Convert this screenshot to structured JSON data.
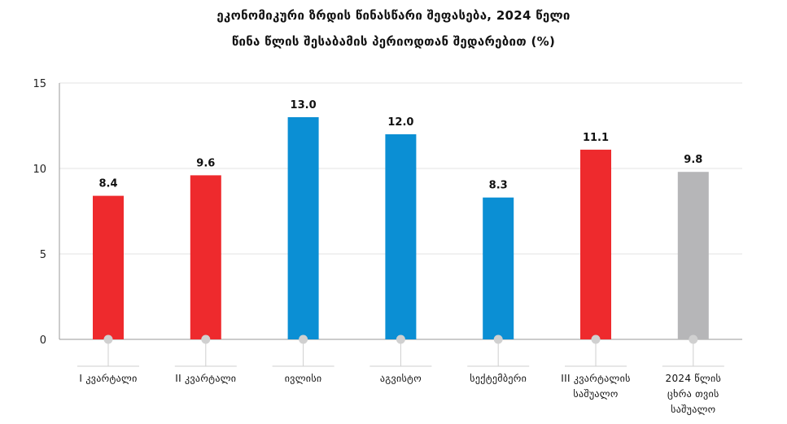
{
  "header": {
    "title_line1": "ეკონომიკური ზრდის წინასწარი შეფასება,  2024 წელი",
    "title_line2": "წინა წლის შესაბამის პერიოდთან შედარებით (%)"
  },
  "colors": {
    "red": "#ee2a2d",
    "blue": "#0b8fd4",
    "gray": "#b6b6b8",
    "grid": "#e3e3e3",
    "axis": "#9a9a9a",
    "marker": "#d0d0d0"
  },
  "chart_data": {
    "type": "bar",
    "title": "ეკონომიკური ზრდის წინასწარი შეფასება,  2024 წელი",
    "subtitle": "წინა წლის შესაბამის პერიოდთან შედარებით (%)",
    "ylim": [
      0,
      15
    ],
    "yticks": [
      0,
      5,
      10,
      15
    ],
    "grid": true,
    "categories": [
      [
        "I კვარტალი"
      ],
      [
        "II კვარტალი"
      ],
      [
        "ივლისი"
      ],
      [
        "აგვისტო"
      ],
      [
        "სექტემბერი"
      ],
      [
        "III კვარტალის",
        "საშუალო"
      ],
      [
        "2024 წლის",
        "ცხრა თვის",
        "საშუალო"
      ]
    ],
    "values": [
      8.4,
      9.6,
      13.0,
      12.0,
      8.3,
      11.1,
      9.8
    ],
    "value_labels": [
      "8.4",
      "9.6",
      "13.0",
      "12.0",
      "8.3",
      "11.1",
      "9.8"
    ],
    "bar_colors": [
      "red",
      "red",
      "blue",
      "blue",
      "blue",
      "red",
      "gray"
    ]
  }
}
